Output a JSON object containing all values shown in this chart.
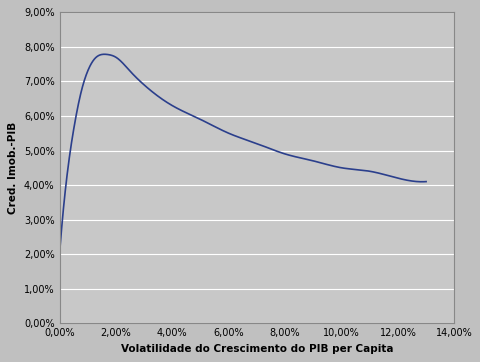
{
  "title": "",
  "xlabel": "Volatilidade do Crescimento do PIB per Capita",
  "ylabel": "Cred. Imob.-PIB",
  "xlim": [
    0.0,
    0.14
  ],
  "ylim": [
    0.0,
    0.09
  ],
  "x_ticks": [
    0.0,
    0.02,
    0.04,
    0.06,
    0.08,
    0.1,
    0.12,
    0.14
  ],
  "y_ticks": [
    0.0,
    0.01,
    0.02,
    0.03,
    0.04,
    0.05,
    0.06,
    0.07,
    0.08,
    0.09
  ],
  "line_color": "#2b3f8c",
  "background_color": "#c0c0c0",
  "plot_bg_color": "#c8c8c8",
  "grid_color": "#ffffff",
  "curve_x": [
    0.0001,
    0.002,
    0.005,
    0.008,
    0.01,
    0.013,
    0.015,
    0.017,
    0.02,
    0.025,
    0.03,
    0.04,
    0.05,
    0.06,
    0.07,
    0.08,
    0.09,
    0.1,
    0.11,
    0.12,
    0.13
  ],
  "curve_y": [
    0.021,
    0.038,
    0.056,
    0.068,
    0.073,
    0.077,
    0.0778,
    0.0778,
    0.077,
    0.073,
    0.069,
    0.063,
    0.059,
    0.055,
    0.052,
    0.049,
    0.047,
    0.045,
    0.044,
    0.042,
    0.041
  ]
}
